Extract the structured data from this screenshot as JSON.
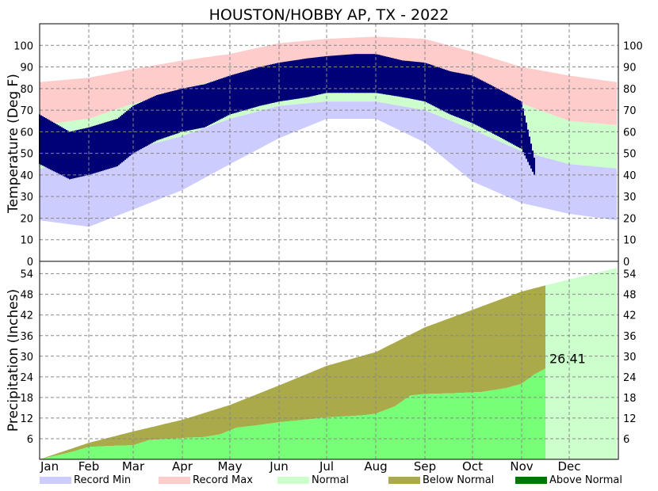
{
  "chart_data": {
    "type": "area",
    "title": "HOUSTON/HOBBY AP, TX - 2022",
    "x_months": [
      "Jan",
      "Feb",
      "Mar",
      "Apr",
      "May",
      "Jun",
      "Jul",
      "Aug",
      "Sep",
      "Oct",
      "Nov",
      "Dec"
    ],
    "temperature": {
      "ylabel": "Temperature (Deg F)",
      "ylim": [
        0,
        110
      ],
      "ticks": [
        0,
        10,
        20,
        30,
        40,
        50,
        60,
        70,
        80,
        90,
        100
      ],
      "normal_high_anchors": [
        [
          1,
          63
        ],
        [
          32,
          66
        ],
        [
          60,
          73
        ],
        [
          91,
          79
        ],
        [
          121,
          86
        ],
        [
          152,
          91
        ],
        [
          182,
          94
        ],
        [
          213,
          94
        ],
        [
          244,
          90
        ],
        [
          274,
          83
        ],
        [
          305,
          73
        ],
        [
          335,
          65
        ],
        [
          365,
          63
        ]
      ],
      "normal_low_anchors": [
        [
          1,
          43
        ],
        [
          32,
          46
        ],
        [
          60,
          52
        ],
        [
          91,
          58
        ],
        [
          121,
          66
        ],
        [
          152,
          72
        ],
        [
          182,
          74
        ],
        [
          213,
          74
        ],
        [
          244,
          70
        ],
        [
          274,
          61
        ],
        [
          305,
          51
        ],
        [
          335,
          45
        ],
        [
          365,
          43
        ]
      ],
      "record_max_anchors": [
        [
          1,
          83
        ],
        [
          32,
          85
        ],
        [
          60,
          89
        ],
        [
          91,
          93
        ],
        [
          121,
          96
        ],
        [
          152,
          101
        ],
        [
          182,
          103
        ],
        [
          213,
          104
        ],
        [
          244,
          103
        ],
        [
          274,
          97
        ],
        [
          305,
          90
        ],
        [
          335,
          86
        ],
        [
          365,
          83
        ]
      ],
      "record_min_anchors": [
        [
          1,
          19
        ],
        [
          32,
          16
        ],
        [
          60,
          24
        ],
        [
          91,
          33
        ],
        [
          121,
          45
        ],
        [
          152,
          57
        ],
        [
          182,
          66
        ],
        [
          213,
          66
        ],
        [
          244,
          55
        ],
        [
          274,
          37
        ],
        [
          305,
          27
        ],
        [
          335,
          22
        ],
        [
          365,
          19
        ]
      ],
      "observed_until_day": 313,
      "observed_high_anchors": [
        [
          1,
          68
        ],
        [
          20,
          60
        ],
        [
          32,
          62
        ],
        [
          50,
          66
        ],
        [
          60,
          72
        ],
        [
          75,
          77
        ],
        [
          91,
          80
        ],
        [
          105,
          82
        ],
        [
          121,
          86
        ],
        [
          140,
          90
        ],
        [
          152,
          92
        ],
        [
          170,
          94
        ],
        [
          182,
          95
        ],
        [
          200,
          96
        ],
        [
          213,
          96
        ],
        [
          230,
          93
        ],
        [
          244,
          92
        ],
        [
          260,
          88
        ],
        [
          274,
          86
        ],
        [
          290,
          80
        ],
        [
          305,
          74
        ],
        [
          313,
          48
        ]
      ],
      "observed_low_anchors": [
        [
          1,
          45
        ],
        [
          20,
          38
        ],
        [
          32,
          40
        ],
        [
          50,
          44
        ],
        [
          60,
          50
        ],
        [
          75,
          56
        ],
        [
          91,
          60
        ],
        [
          105,
          62
        ],
        [
          121,
          68
        ],
        [
          140,
          72
        ],
        [
          152,
          74
        ],
        [
          170,
          76
        ],
        [
          182,
          78
        ],
        [
          200,
          78
        ],
        [
          213,
          78
        ],
        [
          230,
          76
        ],
        [
          244,
          74
        ],
        [
          260,
          68
        ],
        [
          274,
          64
        ],
        [
          290,
          58
        ],
        [
          305,
          52
        ],
        [
          313,
          40
        ]
      ]
    },
    "precipitation": {
      "ylabel": "Precipitation (Inches)",
      "ylim": [
        0,
        57.6
      ],
      "ticks": [
        6,
        12,
        18,
        24,
        30,
        36,
        42,
        48,
        54
      ],
      "normal_cumulative_anchors": [
        [
          1,
          0
        ],
        [
          32,
          4.8
        ],
        [
          60,
          8.1
        ],
        [
          91,
          11.5
        ],
        [
          121,
          15.8
        ],
        [
          152,
          21.5
        ],
        [
          182,
          27.2
        ],
        [
          213,
          31.2
        ],
        [
          244,
          38.4
        ],
        [
          274,
          43.5
        ],
        [
          305,
          48.8
        ],
        [
          320,
          50.6
        ],
        [
          335,
          52.3
        ],
        [
          365,
          55.7
        ]
      ],
      "observed_cumulative_anchors": [
        [
          1,
          0
        ],
        [
          20,
          2.0
        ],
        [
          32,
          3.6
        ],
        [
          45,
          3.9
        ],
        [
          60,
          4.1
        ],
        [
          70,
          5.6
        ],
        [
          91,
          6.2
        ],
        [
          105,
          6.5
        ],
        [
          115,
          7.3
        ],
        [
          125,
          9.2
        ],
        [
          140,
          10.0
        ],
        [
          152,
          10.8
        ],
        [
          170,
          11.6
        ],
        [
          182,
          12.2
        ],
        [
          205,
          12.8
        ],
        [
          213,
          13.3
        ],
        [
          225,
          15.4
        ],
        [
          235,
          18.6
        ],
        [
          244,
          19.0
        ],
        [
          260,
          19.2
        ],
        [
          280,
          19.6
        ],
        [
          295,
          20.7
        ],
        [
          305,
          22.0
        ],
        [
          313,
          24.7
        ],
        [
          320,
          26.41
        ]
      ],
      "observed_until_day": 320,
      "annotation": "26.41"
    },
    "colors": {
      "record_min": "#ccccff",
      "record_max": "#ffcccc",
      "normal": "#ccffcc",
      "below_normal": "#aaaa4a",
      "above_normal": "#007700",
      "observed_temp": "#000077",
      "observed_precip": "#77ff77"
    },
    "legend": [
      "Record Min",
      "Record Max",
      "Normal",
      "Below Normal",
      "Above Normal"
    ]
  }
}
